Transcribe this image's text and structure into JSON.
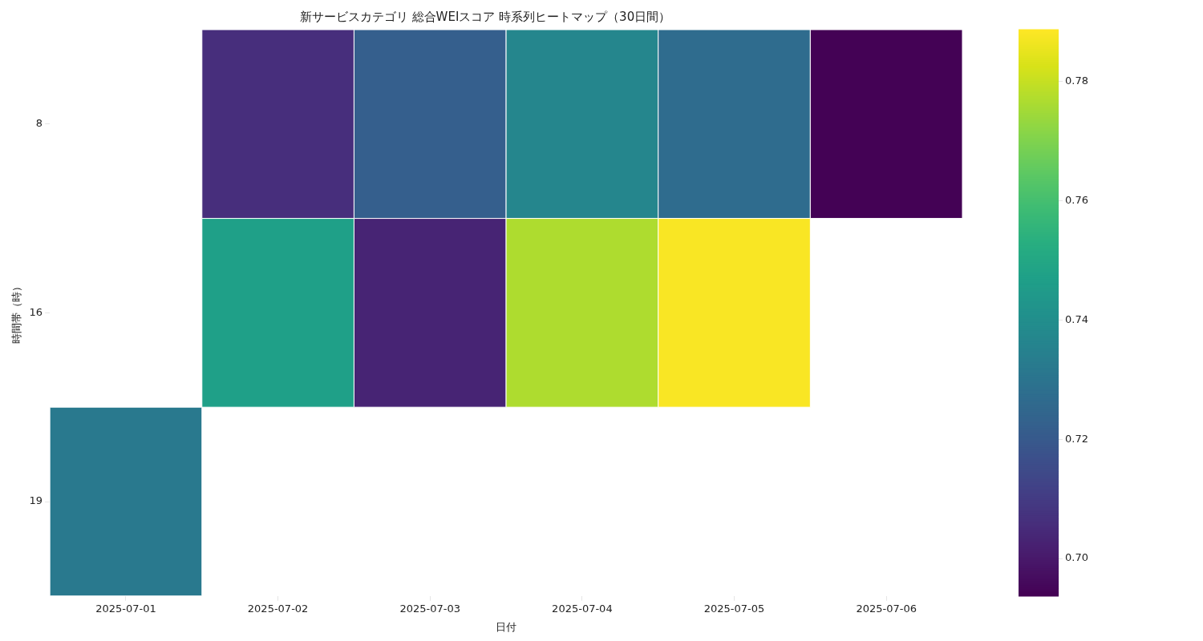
{
  "chart_data": {
    "type": "heatmap",
    "title": "新サービスカテゴリ 総合WEIスコア 時系列ヒートマップ（30日間）",
    "xlabel": "日付",
    "ylabel": "時間帯（時）",
    "categories": [
      "2025-07-01",
      "2025-07-02",
      "2025-07-03",
      "2025-07-04",
      "2025-07-05",
      "2025-07-06"
    ],
    "y_categories": [
      "8",
      "16",
      "19"
    ],
    "cells": [
      [
        null,
        0.706,
        0.722,
        0.737,
        0.727,
        0.694
      ],
      [
        null,
        0.747,
        0.703,
        0.777,
        0.788,
        null
      ],
      [
        0.732,
        null,
        null,
        null,
        null,
        null
      ]
    ],
    "clim": [
      0.6937,
      0.7887
    ],
    "cticks": [
      {
        "value": 0.7,
        "label": "0.70"
      },
      0.72,
      0.74,
      0.76,
      0.78
    ]
  }
}
